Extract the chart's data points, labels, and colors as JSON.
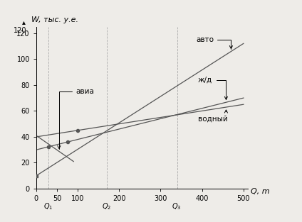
{
  "xlabel": "Q, m",
  "ylabel": "W, тыс. у.е.",
  "xlim": [
    0,
    510
  ],
  "ylim": [
    0,
    125
  ],
  "xticks": [
    0,
    50,
    100,
    200,
    300,
    400,
    500
  ],
  "yticks": [
    0,
    20,
    40,
    60,
    80,
    100,
    120
  ],
  "Q1": 30,
  "Q2": 170,
  "Q3": 340,
  "auto_line": {
    "x0": 0,
    "y0": 10,
    "x1": 500,
    "y1": 112
  },
  "jd_line": {
    "x0": 0,
    "y0": 30,
    "x1": 500,
    "y1": 70
  },
  "vod_line": {
    "x0": 0,
    "y0": 40,
    "x1": 500,
    "y1": 65
  },
  "avia_line": {
    "x0": 0,
    "y0": 41,
    "x1": 90,
    "y1": 21
  },
  "bg_color": "#eeece8",
  "line_color": "#555555",
  "dashed_color": "#aaaaaa",
  "fontsize": 8,
  "label_fontsize": 7.5
}
